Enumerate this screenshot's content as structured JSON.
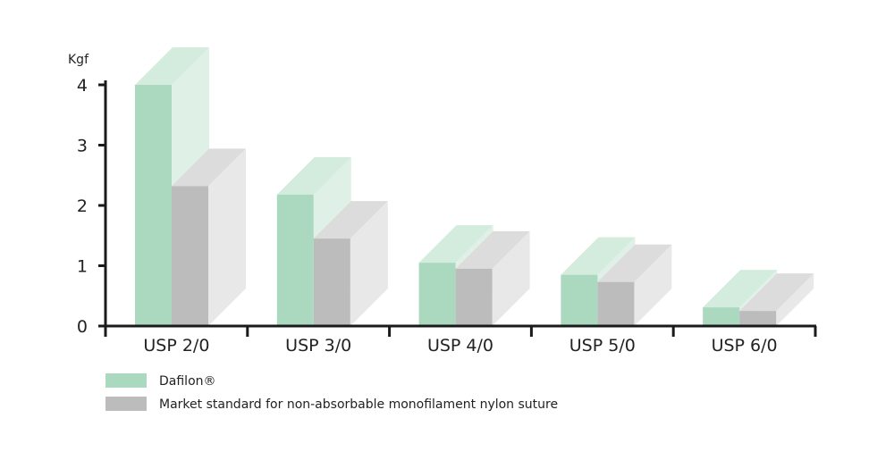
{
  "chart_data": {
    "type": "bar",
    "style": "3d-grouped",
    "unit_label": "Kgf",
    "categories": [
      "USP 2/0",
      "USP 3/0",
      "USP 4/0",
      "USP 5/0",
      "USP 6/0"
    ],
    "series": [
      {
        "name": "Dafilon®",
        "values": [
          4.0,
          2.18,
          1.05,
          0.85,
          0.31
        ],
        "color": "#aad9bf",
        "side_color": "#dff1e6",
        "top_color": "#d3ecdd"
      },
      {
        "name": "Market standard for non-absorbable monofilament nylon suture",
        "values": [
          2.32,
          1.45,
          0.95,
          0.73,
          0.25
        ],
        "color": "#bcbcbc",
        "side_color": "#e8e8e8",
        "top_color": "#dcdcdc"
      }
    ],
    "yticks": [
      0,
      1,
      2,
      3,
      4
    ],
    "ylim": [
      0,
      4
    ],
    "grid": false,
    "legend_position": "bottom-left"
  }
}
